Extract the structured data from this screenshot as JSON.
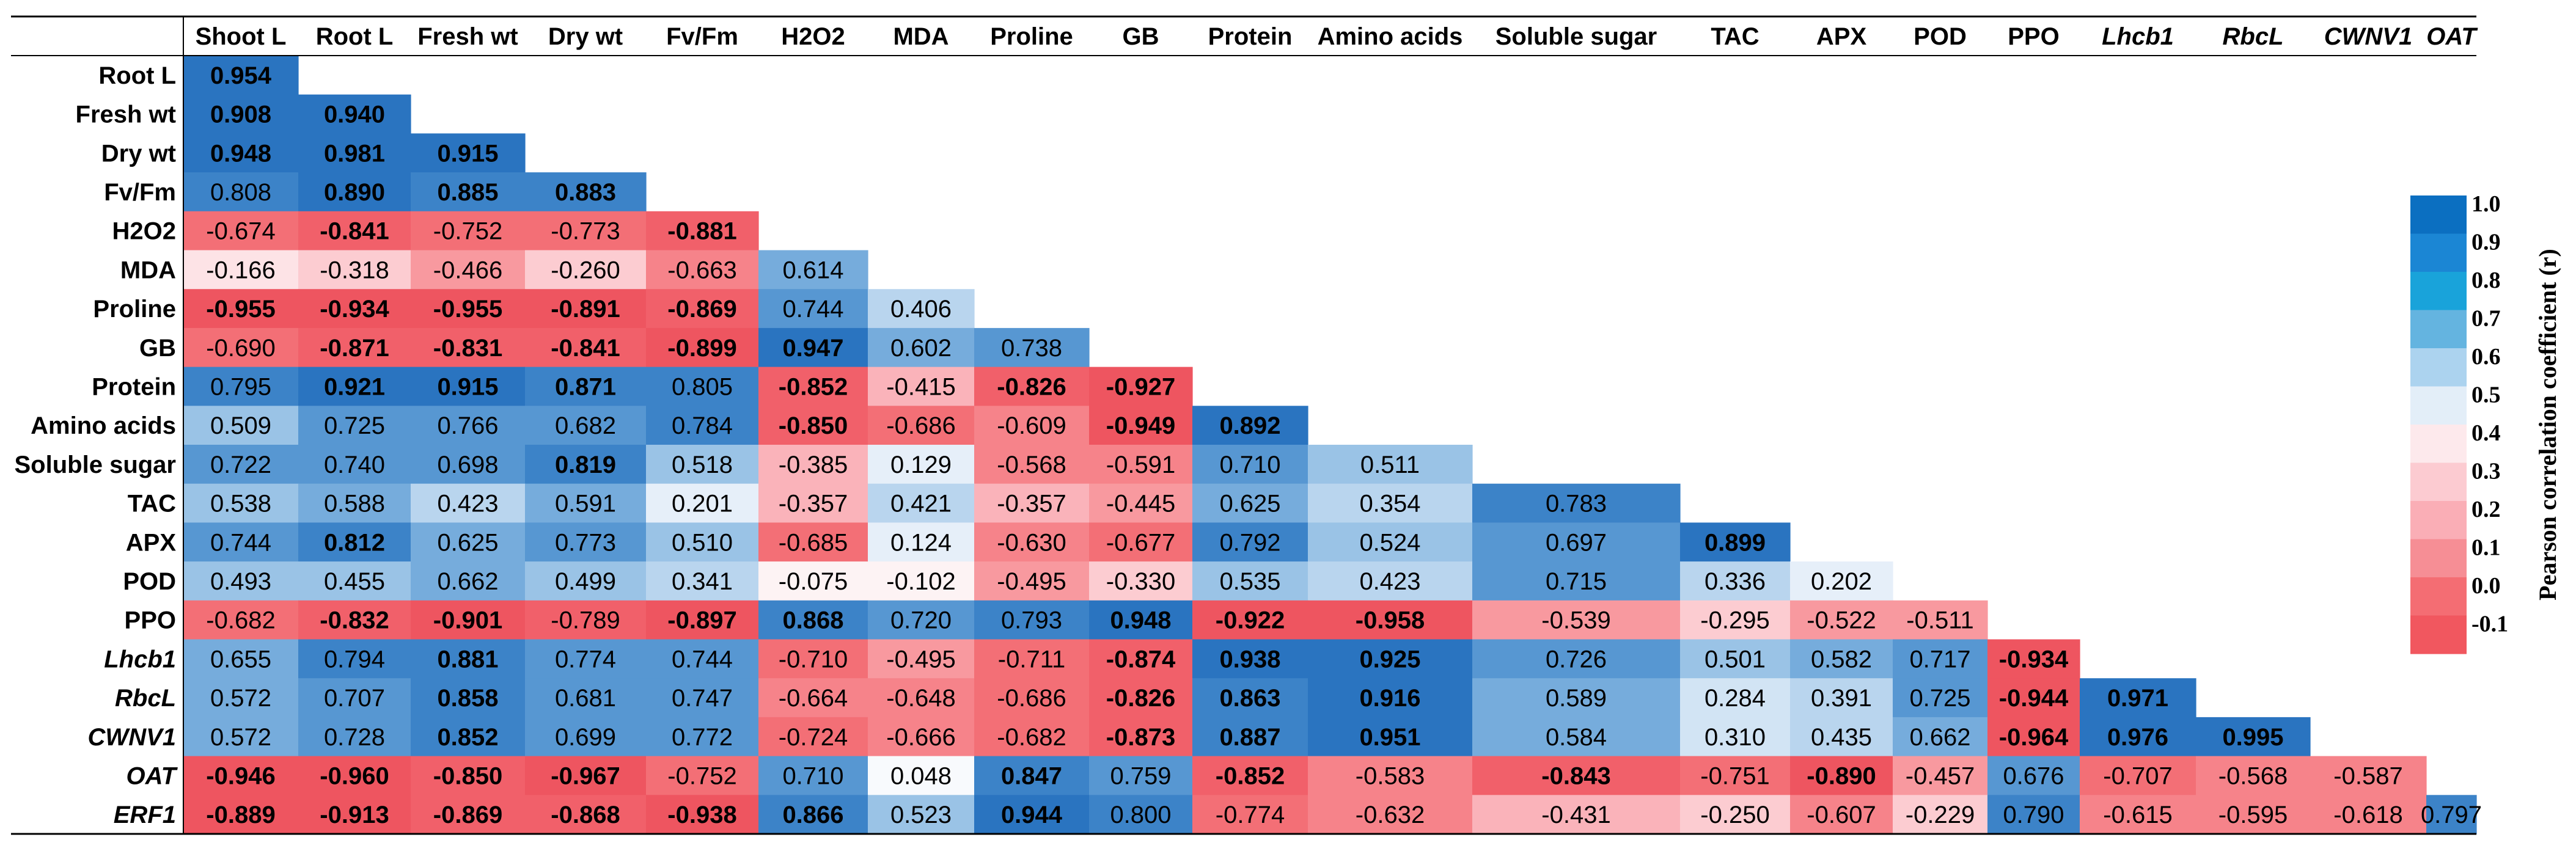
{
  "chart_data": {
    "type": "heatmap",
    "title": "",
    "columns": [
      {
        "label": "Shoot L",
        "italic": false
      },
      {
        "label": "Root L",
        "italic": false
      },
      {
        "label": "Fresh wt",
        "italic": false
      },
      {
        "label": "Dry wt",
        "italic": false
      },
      {
        "label": "Fv/Fm",
        "italic": false
      },
      {
        "label": "H2O2",
        "italic": false
      },
      {
        "label": "MDA",
        "italic": false
      },
      {
        "label": "Proline",
        "italic": false
      },
      {
        "label": "GB",
        "italic": false
      },
      {
        "label": "Protein",
        "italic": false
      },
      {
        "label": "Amino acids",
        "italic": false
      },
      {
        "label": "Soluble sugar",
        "italic": false
      },
      {
        "label": "TAC",
        "italic": false
      },
      {
        "label": "APX",
        "italic": false
      },
      {
        "label": "POD",
        "italic": false
      },
      {
        "label": "PPO",
        "italic": false
      },
      {
        "label": "Lhcb1",
        "italic": true
      },
      {
        "label": "RbcL",
        "italic": true
      },
      {
        "label": "CWNV1",
        "italic": true
      },
      {
        "label": "OAT",
        "italic": true
      }
    ],
    "rows": [
      {
        "label": "Root L",
        "italic": false,
        "values": [
          0.954
        ],
        "bold": [
          1
        ]
      },
      {
        "label": "Fresh wt",
        "italic": false,
        "values": [
          0.908,
          0.94
        ],
        "bold": [
          1,
          1
        ]
      },
      {
        "label": "Dry wt",
        "italic": false,
        "values": [
          0.948,
          0.981,
          0.915
        ],
        "bold": [
          1,
          1,
          1
        ]
      },
      {
        "label": "Fv/Fm",
        "italic": false,
        "values": [
          0.808,
          0.89,
          0.885,
          0.883
        ],
        "bold": [
          0,
          1,
          1,
          1
        ]
      },
      {
        "label": "H2O2",
        "italic": false,
        "values": [
          -0.674,
          -0.841,
          -0.752,
          -0.773,
          -0.881
        ],
        "bold": [
          0,
          1,
          0,
          0,
          1
        ]
      },
      {
        "label": "MDA",
        "italic": false,
        "values": [
          -0.166,
          -0.318,
          -0.466,
          -0.26,
          -0.663,
          0.614
        ],
        "bold": [
          0,
          0,
          0,
          0,
          0,
          0
        ]
      },
      {
        "label": "Proline",
        "italic": false,
        "values": [
          -0.955,
          -0.934,
          -0.955,
          -0.891,
          -0.869,
          0.744,
          0.406
        ],
        "bold": [
          1,
          1,
          1,
          1,
          1,
          0,
          0
        ]
      },
      {
        "label": "GB",
        "italic": false,
        "values": [
          -0.69,
          -0.871,
          -0.831,
          -0.841,
          -0.899,
          0.947,
          0.602,
          0.738
        ],
        "bold": [
          0,
          1,
          1,
          1,
          1,
          1,
          0,
          0
        ]
      },
      {
        "label": "Protein",
        "italic": false,
        "values": [
          0.795,
          0.921,
          0.915,
          0.871,
          0.805,
          -0.852,
          -0.415,
          -0.826,
          -0.927
        ],
        "bold": [
          0,
          1,
          1,
          1,
          0,
          1,
          0,
          1,
          1
        ]
      },
      {
        "label": "Amino acids",
        "italic": false,
        "values": [
          0.509,
          0.725,
          0.766,
          0.682,
          0.784,
          -0.85,
          -0.686,
          -0.609,
          -0.949,
          0.892
        ],
        "bold": [
          0,
          0,
          0,
          0,
          0,
          1,
          0,
          0,
          1,
          1
        ]
      },
      {
        "label": "Soluble sugar",
        "italic": false,
        "values": [
          0.722,
          0.74,
          0.698,
          0.819,
          0.518,
          -0.385,
          0.129,
          -0.568,
          -0.591,
          0.71,
          0.511
        ],
        "bold": [
          0,
          0,
          0,
          1,
          0,
          0,
          0,
          0,
          0,
          0,
          0
        ]
      },
      {
        "label": "TAC",
        "italic": false,
        "values": [
          0.538,
          0.588,
          0.423,
          0.591,
          0.201,
          -0.357,
          0.421,
          -0.357,
          -0.445,
          0.625,
          0.354,
          0.783
        ],
        "bold": [
          0,
          0,
          0,
          0,
          0,
          0,
          0,
          0,
          0,
          0,
          0,
          0
        ]
      },
      {
        "label": "APX",
        "italic": false,
        "values": [
          0.744,
          0.812,
          0.625,
          0.773,
          0.51,
          -0.685,
          0.124,
          -0.63,
          -0.677,
          0.792,
          0.524,
          0.697,
          0.899
        ],
        "bold": [
          0,
          1,
          0,
          0,
          0,
          0,
          0,
          0,
          0,
          0,
          0,
          0,
          1
        ]
      },
      {
        "label": "POD",
        "italic": false,
        "values": [
          0.493,
          0.455,
          0.662,
          0.499,
          0.341,
          -0.075,
          -0.102,
          -0.495,
          -0.33,
          0.535,
          0.423,
          0.715,
          0.336,
          0.202
        ],
        "bold": [
          0,
          0,
          0,
          0,
          0,
          0,
          0,
          0,
          0,
          0,
          0,
          0,
          0,
          0
        ]
      },
      {
        "label": "PPO",
        "italic": false,
        "values": [
          -0.682,
          -0.832,
          -0.901,
          -0.789,
          -0.897,
          0.868,
          0.72,
          0.793,
          0.948,
          -0.922,
          -0.958,
          -0.539,
          -0.295,
          -0.522,
          -0.511
        ],
        "bold": [
          0,
          1,
          1,
          0,
          1,
          1,
          0,
          0,
          1,
          1,
          1,
          0,
          0,
          0,
          0
        ]
      },
      {
        "label": "Lhcb1",
        "italic": true,
        "values": [
          0.655,
          0.794,
          0.881,
          0.774,
          0.744,
          -0.71,
          -0.495,
          -0.711,
          -0.874,
          0.938,
          0.925,
          0.726,
          0.501,
          0.582,
          0.717,
          -0.934
        ],
        "bold": [
          0,
          0,
          1,
          0,
          0,
          0,
          0,
          0,
          1,
          1,
          1,
          0,
          0,
          0,
          0,
          1
        ]
      },
      {
        "label": "RbcL",
        "italic": true,
        "values": [
          0.572,
          0.707,
          0.858,
          0.681,
          0.747,
          -0.664,
          -0.648,
          -0.686,
          -0.826,
          0.863,
          0.916,
          0.589,
          0.284,
          0.391,
          0.725,
          -0.944,
          0.971
        ],
        "bold": [
          0,
          0,
          1,
          0,
          0,
          0,
          0,
          0,
          1,
          1,
          1,
          0,
          0,
          0,
          0,
          1,
          1
        ]
      },
      {
        "label": "CWNV1",
        "italic": true,
        "values": [
          0.572,
          0.728,
          0.852,
          0.699,
          0.772,
          -0.724,
          -0.666,
          -0.682,
          -0.873,
          0.887,
          0.951,
          0.584,
          0.31,
          0.435,
          0.662,
          -0.964,
          0.976,
          0.995
        ],
        "bold": [
          0,
          0,
          1,
          0,
          0,
          0,
          0,
          0,
          1,
          1,
          1,
          0,
          0,
          0,
          0,
          1,
          1,
          1
        ]
      },
      {
        "label": "OAT",
        "italic": true,
        "values": [
          -0.946,
          -0.96,
          -0.85,
          -0.967,
          -0.752,
          0.71,
          0.048,
          0.847,
          0.759,
          -0.852,
          -0.583,
          -0.843,
          -0.751,
          -0.89,
          -0.457,
          0.676,
          -0.707,
          -0.568,
          -0.587
        ],
        "bold": [
          1,
          1,
          1,
          1,
          0,
          0,
          0,
          1,
          0,
          1,
          0,
          1,
          0,
          1,
          0,
          0,
          0,
          0,
          0
        ]
      },
      {
        "label": "ERF1",
        "italic": true,
        "values": [
          -0.889,
          -0.913,
          -0.869,
          -0.868,
          -0.938,
          0.866,
          0.523,
          0.944,
          0.8,
          -0.774,
          -0.632,
          -0.431,
          -0.25,
          -0.607,
          -0.229,
          0.79,
          -0.615,
          -0.595,
          -0.618,
          0.797
        ],
        "bold": [
          1,
          1,
          1,
          1,
          1,
          1,
          0,
          1,
          0,
          0,
          0,
          0,
          0,
          0,
          0,
          0,
          0,
          0,
          0,
          0
        ]
      }
    ],
    "legend": {
      "title": "Pearson correlation coefficient (r)",
      "ticks": [
        "1.0",
        "0.9",
        "0.8",
        "0.7",
        "0.6",
        "0.5",
        "0.4",
        "0.3",
        "0.2",
        "0.1",
        "0.0",
        "-0.1"
      ],
      "colors": [
        "#0b6fc1",
        "#1b86d4",
        "#19a3da",
        "#64b4e0",
        "#acd3ef",
        "#e3eef8",
        "#fde9ec",
        "#fccbd1",
        "#faaeb6",
        "#f68e95",
        "#f46d73",
        "#f1575f"
      ]
    },
    "palette": {
      "pos": [
        "#f8fafd",
        "#e6eff9",
        "#d2e4f4",
        "#b9d5ee",
        "#9ac3e6",
        "#76acdc",
        "#5797d2",
        "#3c83c8",
        "#2a74c0"
      ],
      "neg": [
        "#fdf3f4",
        "#fde3e6",
        "#fcccd1",
        "#fab3ba",
        "#f8999f",
        "#f6838a",
        "#f36f76",
        "#f1606a",
        "#ee5560"
      ]
    }
  }
}
